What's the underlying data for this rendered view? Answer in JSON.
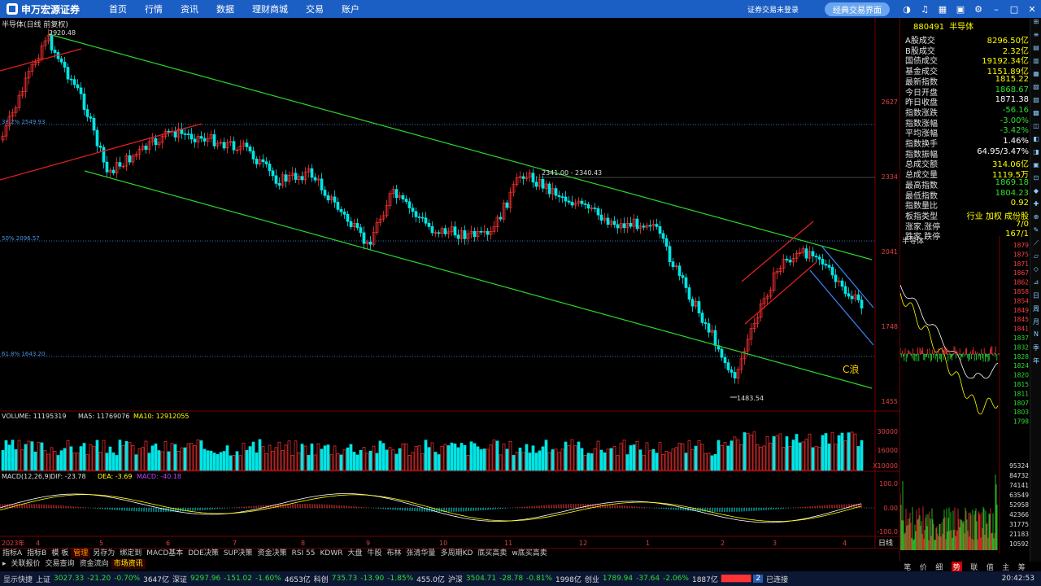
{
  "topbar": {
    "logo": "申万宏源证券",
    "nav": [
      "首页",
      "行情",
      "资讯",
      "数据",
      "理财商城",
      "交易",
      "账户"
    ],
    "login": "证券交易未登录",
    "classic": "经典交易界面"
  },
  "chart": {
    "title": "半导体(日线 前复权)",
    "high_label": "2920.48",
    "low_label": "1483.54",
    "range_label": "2341.00 - 2340.43",
    "fib_382": "38.2% 2549.93",
    "fib_50": "50% 2096.57",
    "fib_618": "61.8% 1643.20",
    "wave_label": "C浪",
    "price_axis": [
      "2627",
      "2334",
      "2041",
      "1748",
      "1455"
    ],
    "month_axis": [
      "2023年",
      "4",
      "5",
      "6",
      "7",
      "8",
      "9",
      "10",
      "11",
      "12",
      "1",
      "2",
      "3",
      "4"
    ],
    "volume_title": "VOLUME: 11195319",
    "volume_ma5": "MA5: 11769076",
    "volume_ma10": "MA10: 12912055",
    "volume_axis": [
      "30000",
      "16000",
      "X10000"
    ],
    "macd_title": "MACD(12,26,9)",
    "macd_dif": "DIF: -23.78",
    "macd_dea": "DEA: -3.69",
    "macd_macd": "MACD: -40.18",
    "macd_axis": [
      "100.0",
      "0.00",
      "-100.0"
    ],
    "period": "日线"
  },
  "quote": {
    "code": "880491",
    "name": "半导体",
    "rows": [
      [
        "A股成交",
        "8296.50亿"
      ],
      [
        "B股成交",
        "2.32亿"
      ],
      [
        "国债成交",
        "19192.34亿"
      ],
      [
        "基金成交",
        "1151.89亿"
      ],
      [
        "最新指数",
        "1815.22"
      ],
      [
        "今日开盘",
        "1868.67"
      ],
      [
        "昨日收盘",
        "1871.38"
      ],
      [
        "指数涨跌",
        "-56.16"
      ],
      [
        "指数涨幅",
        "-3.00%"
      ],
      [
        "平均涨幅",
        "-3.42%"
      ],
      [
        "指数换手",
        "1.46%"
      ],
      [
        "指数振幅",
        "64.95/3.47%"
      ],
      [
        "总成交额",
        "314.06亿"
      ],
      [
        "总成交量",
        "1119.5万"
      ],
      [
        "最高指数",
        "1869.18"
      ],
      [
        "最低指数",
        "1804.23"
      ],
      [
        "指数量比",
        "0.92"
      ],
      [
        "板指类型",
        "行业 加权 成份股"
      ],
      [
        "涨家.涨停",
        "7/0"
      ],
      [
        "跌家.跌停",
        "167/1"
      ]
    ],
    "intraday_title": "半导体",
    "intraday_axis": [
      "1879",
      "1875",
      "1871",
      "1867",
      "1862",
      "1858",
      "1854",
      "1849",
      "1845",
      "1841",
      "1837",
      "1832",
      "1828",
      "1824",
      "1820",
      "1815",
      "1811",
      "1807",
      "1803",
      "1798"
    ],
    "vol_axis": [
      "95324",
      "84732",
      "74141",
      "63549",
      "52958",
      "42366",
      "31775",
      "21183",
      "10592"
    ],
    "tabs": [
      "笔",
      "价",
      "细",
      "势",
      "联",
      "值",
      "主",
      "筹"
    ],
    "active_tab": "势"
  },
  "tabs1": [
    "指标A",
    "指标B",
    "模 板",
    "管理",
    "另存为",
    "绑定到",
    "MACD基本",
    "DDE决策",
    "SUP决策",
    "资金决策",
    "RSI 55",
    "KDWR",
    "大盘",
    "牛股",
    "布林",
    "张清华量",
    "多周期KD",
    "底买高卖",
    "w底买高卖"
  ],
  "tabs1_active": "管理",
  "tabs2": [
    "关联报价",
    "交易查询",
    "资金流向",
    "市场资讯"
  ],
  "tabs2_active": "市场资讯",
  "status": {
    "quick": "显示快捷",
    "sh": "上证",
    "sh_v": "3027.33",
    "sh_c": "-21.20",
    "sh_p": "-0.70%",
    "sh_a": "3647亿",
    "sz": "深证",
    "sz_v": "9297.96",
    "sz_c": "-151.02",
    "sz_p": "-1.60%",
    "sz_a": "4653亿",
    "kc": "科创",
    "kc_v": "735.73",
    "kc_c": "-13.90",
    "kc_p": "-1.85%",
    "kc_a": "455.0亿",
    "hs": "沪深",
    "hs_v": "3504.71",
    "hs_c": "-28.78",
    "hs_p": "-0.81%",
    "hs_a": "1998亿",
    "cy": "创业",
    "cy_v": "1789.94",
    "cy_c": "-37.64",
    "cy_p": "-2.06%",
    "cy_a": "1887亿",
    "conn": "已连接",
    "time": "20:42:53"
  },
  "colors": {
    "up": "#ff3232",
    "down": "#00e5e5",
    "channel": "#2cd62c",
    "bg": "#000000"
  }
}
